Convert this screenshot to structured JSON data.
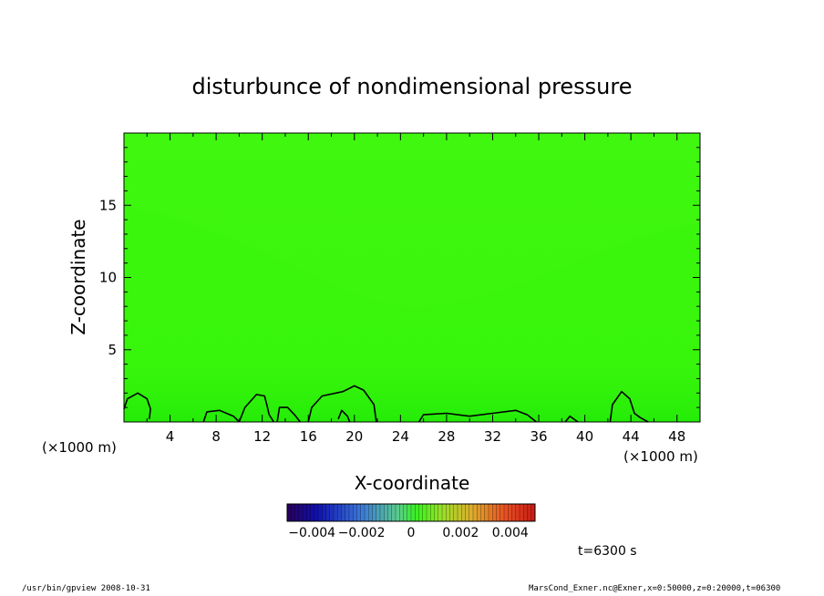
{
  "chart_data": {
    "type": "heatmap",
    "title": "disturbunce of nondimensional pressure",
    "xlabel": "X-coordinate",
    "ylabel": "Z-coordinate",
    "x_unit_left": "(×1000 m)",
    "x_unit_right": "(×1000 m)",
    "xlim": [
      0,
      50
    ],
    "ylim": [
      0,
      20
    ],
    "x_ticks": [
      "4",
      "8",
      "12",
      "16",
      "20",
      "24",
      "28",
      "32",
      "36",
      "40",
      "44",
      "48"
    ],
    "x_tick_values": [
      4,
      8,
      12,
      16,
      20,
      24,
      28,
      32,
      36,
      40,
      44,
      48
    ],
    "y_ticks": [
      "5",
      "10",
      "15"
    ],
    "y_tick_values": [
      5,
      10,
      15
    ],
    "colorbar": {
      "range": [
        -0.005,
        0.005
      ],
      "tick_labels": [
        "−0.004",
        "−0.002",
        "0",
        "0.002",
        "0.004"
      ],
      "tick_values": [
        -0.004,
        -0.002,
        0,
        0.002,
        0.004
      ]
    },
    "field_color": "#38f60c",
    "contours": [
      [
        [
          0,
          0.9
        ],
        [
          0.3,
          1.6
        ],
        [
          1.2,
          2.0
        ],
        [
          2.0,
          1.6
        ],
        [
          2.3,
          0.9
        ],
        [
          2.2,
          0.2
        ]
      ],
      [
        [
          6.9,
          0
        ],
        [
          7.2,
          0.7
        ],
        [
          8.3,
          0.8
        ],
        [
          9.5,
          0.4
        ],
        [
          10.0,
          0
        ]
      ],
      [
        [
          10.0,
          0
        ],
        [
          10.5,
          1.0
        ],
        [
          11.5,
          1.9
        ],
        [
          12.2,
          1.8
        ],
        [
          12.4,
          1.2
        ],
        [
          12.6,
          0.5
        ],
        [
          13.0,
          0
        ]
      ],
      [
        [
          13.3,
          0
        ],
        [
          13.5,
          1.0
        ],
        [
          14.2,
          1.0
        ],
        [
          14.8,
          0.5
        ],
        [
          15.3,
          0
        ]
      ],
      [
        [
          16.0,
          0
        ],
        [
          16.3,
          1.0
        ],
        [
          17.2,
          1.8
        ],
        [
          19.0,
          2.1
        ],
        [
          20.0,
          2.5
        ],
        [
          20.8,
          2.2
        ],
        [
          21.7,
          1.2
        ],
        [
          21.9,
          0
        ]
      ],
      [
        [
          18.6,
          0.2
        ],
        [
          18.9,
          0.8
        ],
        [
          19.4,
          0.4
        ],
        [
          19.6,
          0
        ]
      ],
      [
        [
          25.6,
          0
        ],
        [
          26.0,
          0.5
        ],
        [
          28.0,
          0.6
        ],
        [
          30.0,
          0.4
        ],
        [
          32.0,
          0.6
        ],
        [
          34.0,
          0.8
        ],
        [
          35.0,
          0.5
        ],
        [
          35.8,
          0
        ]
      ],
      [
        [
          38.3,
          0
        ],
        [
          38.7,
          0.4
        ],
        [
          39.4,
          0
        ]
      ],
      [
        [
          42.2,
          0
        ],
        [
          42.4,
          1.2
        ],
        [
          43.2,
          2.1
        ],
        [
          43.9,
          1.6
        ],
        [
          44.3,
          0.6
        ],
        [
          44.8,
          0.3
        ],
        [
          45.5,
          0
        ]
      ]
    ]
  },
  "time_label": "t=6300 s",
  "footer": {
    "left": "/usr/bin/gpview   2008-10-31",
    "right": "MarsCond_Exner.nc@Exner,x=0:50000,z=0:20000,t=06300"
  }
}
